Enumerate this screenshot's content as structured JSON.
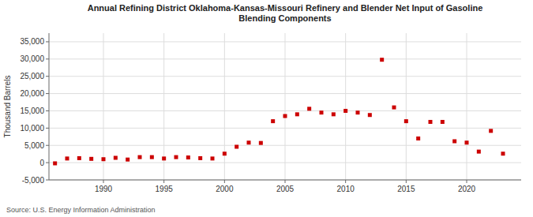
{
  "chart_data": {
    "type": "scatter",
    "title": "Annual Refining District Oklahoma-Kansas-Missouri Refinery and Blender Net Input of Gasoline\nBlending Components",
    "y_label": "Thousand Barrels",
    "annotations": [
      "Source: U.S. Energy Information Administration"
    ],
    "x": [
      1986,
      1987,
      1988,
      1989,
      1990,
      1991,
      1992,
      1993,
      1994,
      1995,
      1996,
      1997,
      1998,
      1999,
      2000,
      2001,
      2002,
      2003,
      2004,
      2005,
      2006,
      2007,
      2008,
      2009,
      2010,
      2011,
      2012,
      2013,
      2014,
      2015,
      2016,
      2017,
      2018,
      2019,
      2020,
      2021,
      2022,
      2023
    ],
    "values": [
      -200,
      1200,
      1300,
      1100,
      1000,
      1400,
      900,
      1600,
      1600,
      1200,
      1600,
      1500,
      1300,
      1200,
      2600,
      4600,
      5800,
      5700,
      12000,
      13500,
      14000,
      15600,
      14500,
      14000,
      15000,
      14500,
      13800,
      29800,
      16000,
      12000,
      7000,
      11800,
      11800,
      6200,
      5800,
      3200,
      9200,
      2600
    ],
    "color": "#cc0000",
    "marker": "square",
    "xlim": [
      1985.5,
      2024.5
    ],
    "xticks": [
      1990,
      1995,
      2000,
      2005,
      2010,
      2015,
      2020
    ],
    "ylim": [
      -5000,
      37500
    ],
    "yticks": [
      {
        "value": -5000,
        "label": "-5,000"
      },
      {
        "value": 0,
        "label": "0"
      },
      {
        "value": 5000,
        "label": "5,000"
      },
      {
        "value": 10000,
        "label": "10,000"
      },
      {
        "value": 15000,
        "label": "15,000"
      },
      {
        "value": 20000,
        "label": "20,000"
      },
      {
        "value": 25000,
        "label": "25,000"
      },
      {
        "value": 30000,
        "label": "30,000"
      },
      {
        "value": 35000,
        "label": "35,000"
      }
    ],
    "grid": true
  }
}
